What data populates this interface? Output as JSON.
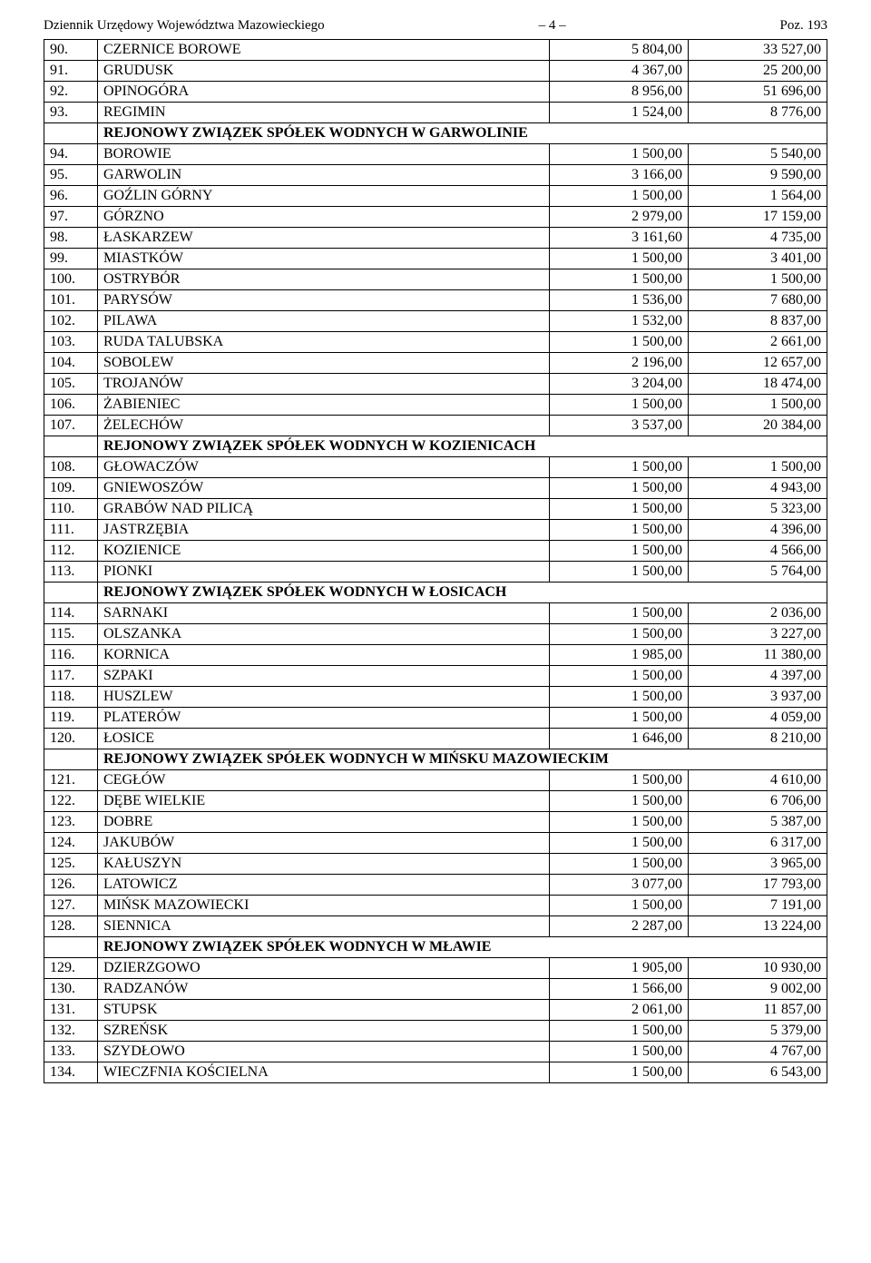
{
  "header": {
    "left": "Dziennik Urzędowy Województwa Mazowieckiego",
    "center": "– 4 –",
    "right": "Poz. 193"
  },
  "rows": [
    {
      "type": "data",
      "num": "90.",
      "name": "CZERNICE BOROWE",
      "v1": "5 804,00",
      "v2": "33 527,00"
    },
    {
      "type": "data",
      "num": "91.",
      "name": "GRUDUSK",
      "v1": "4 367,00",
      "v2": "25 200,00"
    },
    {
      "type": "data",
      "num": "92.",
      "name": "OPINOGÓRA",
      "v1": "8 956,00",
      "v2": "51 696,00"
    },
    {
      "type": "data",
      "num": "93.",
      "name": "REGIMIN",
      "v1": "1 524,00",
      "v2": "8 776,00"
    },
    {
      "type": "section",
      "label": "REJONOWY ZWIĄZEK SPÓŁEK WODNYCH W GARWOLINIE"
    },
    {
      "type": "data",
      "num": "94.",
      "name": "BOROWIE",
      "v1": "1 500,00",
      "v2": "5 540,00"
    },
    {
      "type": "data",
      "num": "95.",
      "name": "GARWOLIN",
      "v1": "3 166,00",
      "v2": "9 590,00"
    },
    {
      "type": "data",
      "num": "96.",
      "name": "GOŹLIN GÓRNY",
      "v1": "1 500,00",
      "v2": "1 564,00"
    },
    {
      "type": "data",
      "num": "97.",
      "name": "GÓRZNO",
      "v1": "2 979,00",
      "v2": "17 159,00"
    },
    {
      "type": "data",
      "num": "98.",
      "name": "ŁASKARZEW",
      "v1": "3 161,60",
      "v2": "4 735,00"
    },
    {
      "type": "data",
      "num": "99.",
      "name": "MIASTKÓW",
      "v1": "1 500,00",
      "v2": "3 401,00"
    },
    {
      "type": "data",
      "num": "100.",
      "name": "OSTRYBÓR",
      "v1": "1 500,00",
      "v2": "1 500,00"
    },
    {
      "type": "data",
      "num": "101.",
      "name": "PARYSÓW",
      "v1": "1 536,00",
      "v2": "7 680,00"
    },
    {
      "type": "data",
      "num": "102.",
      "name": "PILAWA",
      "v1": "1 532,00",
      "v2": "8 837,00"
    },
    {
      "type": "data",
      "num": "103.",
      "name": "RUDA TALUBSKA",
      "v1": "1 500,00",
      "v2": "2 661,00"
    },
    {
      "type": "data",
      "num": "104.",
      "name": "SOBOLEW",
      "v1": "2 196,00",
      "v2": "12 657,00"
    },
    {
      "type": "data",
      "num": "105.",
      "name": "TROJANÓW",
      "v1": "3 204,00",
      "v2": "18 474,00"
    },
    {
      "type": "data",
      "num": "106.",
      "name": "ŻABIENIEC",
      "v1": "1 500,00",
      "v2": "1 500,00"
    },
    {
      "type": "data",
      "num": "107.",
      "name": "ŻELECHÓW",
      "v1": "3 537,00",
      "v2": "20 384,00"
    },
    {
      "type": "section",
      "label": "REJONOWY ZWIĄZEK SPÓŁEK WODNYCH W KOZIENICACH"
    },
    {
      "type": "data",
      "num": "108.",
      "name": "GŁOWACZÓW",
      "v1": "1 500,00",
      "v2": "1 500,00"
    },
    {
      "type": "data",
      "num": "109.",
      "name": "GNIEWOSZÓW",
      "v1": "1 500,00",
      "v2": "4 943,00"
    },
    {
      "type": "data",
      "num": "110.",
      "name": "GRABÓW NAD PILICĄ",
      "v1": "1 500,00",
      "v2": "5 323,00"
    },
    {
      "type": "data",
      "num": "111.",
      "name": "JASTRZĘBIA",
      "v1": "1 500,00",
      "v2": "4 396,00"
    },
    {
      "type": "data",
      "num": "112.",
      "name": "KOZIENICE",
      "v1": "1 500,00",
      "v2": "4 566,00"
    },
    {
      "type": "data",
      "num": "113.",
      "name": "PIONKI",
      "v1": "1 500,00",
      "v2": "5 764,00"
    },
    {
      "type": "section",
      "label": "REJONOWY ZWIĄZEK SPÓŁEK WODNYCH W ŁOSICACH"
    },
    {
      "type": "data",
      "num": "114.",
      "name": "SARNAKI",
      "v1": "1 500,00",
      "v2": "2 036,00"
    },
    {
      "type": "data",
      "num": "115.",
      "name": "OLSZANKA",
      "v1": "1 500,00",
      "v2": "3 227,00"
    },
    {
      "type": "data",
      "num": "116.",
      "name": "KORNICA",
      "v1": "1 985,00",
      "v2": "11 380,00"
    },
    {
      "type": "data",
      "num": "117.",
      "name": "SZPAKI",
      "v1": "1 500,00",
      "v2": "4 397,00"
    },
    {
      "type": "data",
      "num": "118.",
      "name": "HUSZLEW",
      "v1": "1 500,00",
      "v2": "3 937,00"
    },
    {
      "type": "data",
      "num": "119.",
      "name": "PLATERÓW",
      "v1": "1 500,00",
      "v2": "4 059,00"
    },
    {
      "type": "data",
      "num": "120.",
      "name": "ŁOSICE",
      "v1": "1 646,00",
      "v2": "8 210,00"
    },
    {
      "type": "section",
      "label": "REJONOWY ZWIĄZEK SPÓŁEK WODNYCH W MIŃSKU MAZOWIECKIM"
    },
    {
      "type": "data",
      "num": "121.",
      "name": "CEGŁÓW",
      "v1": "1 500,00",
      "v2": "4 610,00"
    },
    {
      "type": "data",
      "num": "122.",
      "name": "DĘBE WIELKIE",
      "v1": "1 500,00",
      "v2": "6 706,00"
    },
    {
      "type": "data",
      "num": "123.",
      "name": "DOBRE",
      "v1": "1 500,00",
      "v2": "5 387,00"
    },
    {
      "type": "data",
      "num": "124.",
      "name": "JAKUBÓW",
      "v1": "1 500,00",
      "v2": "6 317,00"
    },
    {
      "type": "data",
      "num": "125.",
      "name": "KAŁUSZYN",
      "v1": "1 500,00",
      "v2": "3 965,00"
    },
    {
      "type": "data",
      "num": "126.",
      "name": "LATOWICZ",
      "v1": "3 077,00",
      "v2": "17 793,00"
    },
    {
      "type": "data",
      "num": "127.",
      "name": "MIŃSK MAZOWIECKI",
      "v1": "1 500,00",
      "v2": "7 191,00"
    },
    {
      "type": "data",
      "num": "128.",
      "name": "SIENNICA",
      "v1": "2 287,00",
      "v2": "13 224,00"
    },
    {
      "type": "section",
      "label": "REJONOWY ZWIĄZEK SPÓŁEK WODNYCH W MŁAWIE"
    },
    {
      "type": "data",
      "num": "129.",
      "name": "DZIERZGOWO",
      "v1": "1 905,00",
      "v2": "10 930,00"
    },
    {
      "type": "data",
      "num": "130.",
      "name": "RADZANÓW",
      "v1": "1 566,00",
      "v2": "9 002,00"
    },
    {
      "type": "data",
      "num": "131.",
      "name": "STUPSK",
      "v1": "2 061,00",
      "v2": "11 857,00"
    },
    {
      "type": "data",
      "num": "132.",
      "name": "SZREŃSK",
      "v1": "1 500,00",
      "v2": "5 379,00"
    },
    {
      "type": "data",
      "num": "133.",
      "name": "SZYDŁOWO",
      "v1": "1 500,00",
      "v2": "4 767,00"
    },
    {
      "type": "data",
      "num": "134.",
      "name": "WIECZFNIA KOŚCIELNA",
      "v1": "1 500,00",
      "v2": "6 543,00"
    }
  ]
}
